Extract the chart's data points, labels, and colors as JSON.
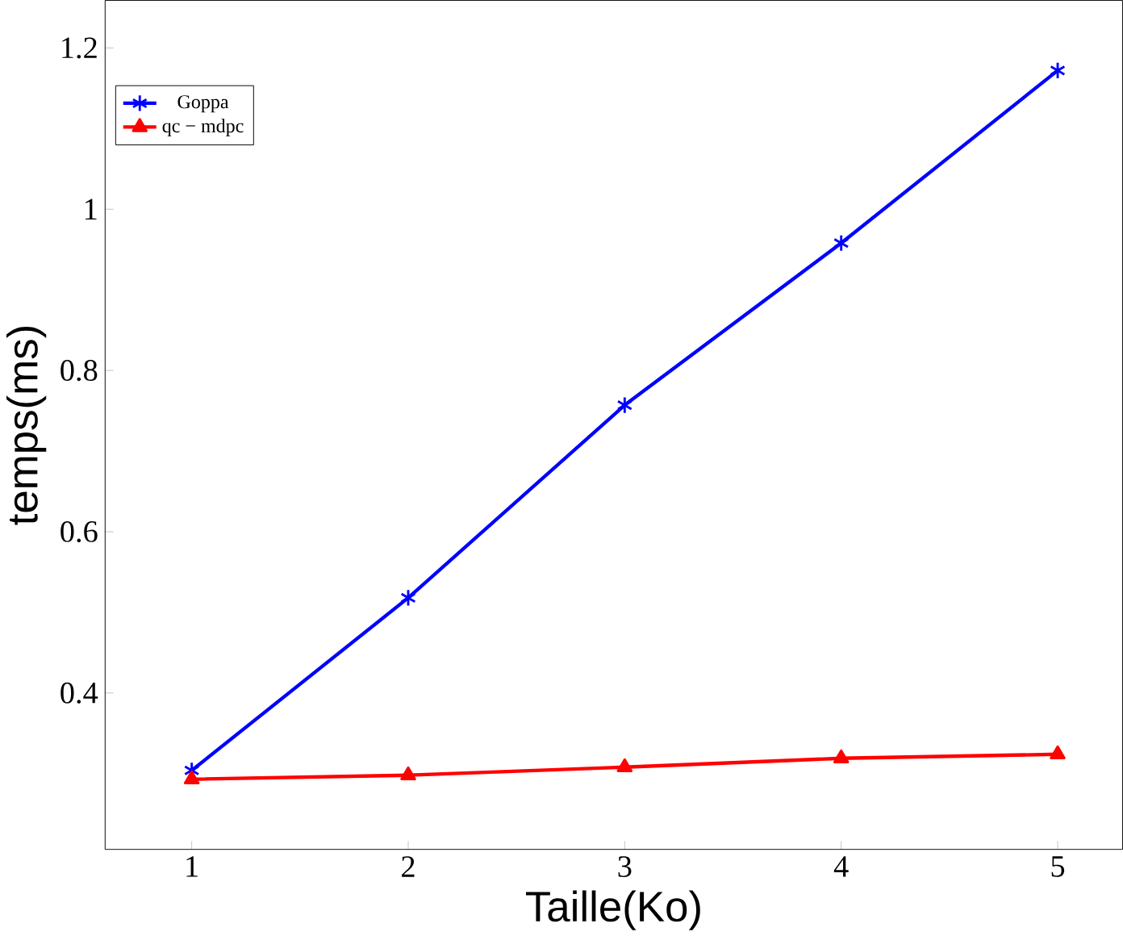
{
  "chart_data": {
    "type": "line",
    "xlabel": "Taille(Ko)",
    "ylabel": "temps(ms)",
    "x": [
      1,
      2,
      3,
      4,
      5
    ],
    "series": [
      {
        "name": "Goppa",
        "color": "#0000ff",
        "marker": "cross",
        "values": [
          0.304,
          0.518,
          0.757,
          0.958,
          1.172
        ]
      },
      {
        "name": "qc − mdpc",
        "color": "#ff0000",
        "marker": "triangle",
        "values": [
          0.293,
          0.298,
          0.308,
          0.319,
          0.324
        ]
      }
    ],
    "xlim": [
      0.6,
      5.3
    ],
    "ylim": [
      0.206,
      1.259
    ],
    "xticks": [
      1,
      2,
      3,
      4,
      5
    ],
    "yticks": [
      0.4,
      0.6,
      0.8,
      1,
      1.2
    ],
    "legend": "top left",
    "grid": false,
    "line_style": "solid"
  }
}
